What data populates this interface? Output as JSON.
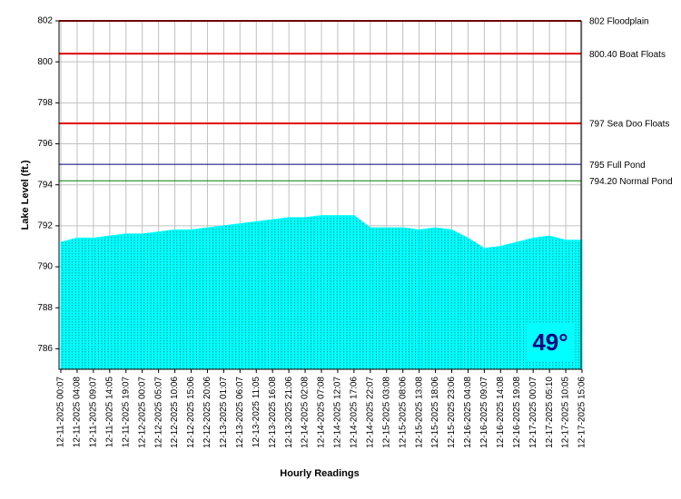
{
  "chart_data": {
    "type": "area",
    "y_label": "Lake Level (ft.)",
    "x_label": "Hourly Readings",
    "annotation": "49°",
    "categories": [
      "12-11-2025 00:07",
      "12-11-2025 04:08",
      "12-11-2025 09:07",
      "12-11-2025 14:05",
      "12-11-2025 19:07",
      "12-12-2025 00:07",
      "12-12-2025 05:07",
      "12-12-2025 10:06",
      "12-12-2025 15:06",
      "12-12-2025 20:06",
      "12-13-2025 01:07",
      "12-13-2025 06:07",
      "12-13-2025 11:05",
      "12-13-2025 16:08",
      "12-13-2025 21:06",
      "12-14-2025 02:08",
      "12-14-2025 07:08",
      "12-14-2025 12:07",
      "12-14-2025 17:06",
      "12-14-2025 22:07",
      "12-15-2025 03:08",
      "12-15-2025 08:06",
      "12-15-2025 13:08",
      "12-15-2025 18:06",
      "12-15-2025 23:06",
      "12-16-2025 04:08",
      "12-16-2025 09:07",
      "12-16-2025 14:08",
      "12-16-2025 19:08",
      "12-17-2025 00:07",
      "12-17-2025 05:10",
      "12-17-2025 10:05",
      "12-17-2025 15:06"
    ],
    "values": [
      791.2,
      791.4,
      791.4,
      791.5,
      791.6,
      791.6,
      791.7,
      791.8,
      791.8,
      791.9,
      792.0,
      792.1,
      792.2,
      792.3,
      792.4,
      792.4,
      792.5,
      792.5,
      792.5,
      791.9,
      791.9,
      791.9,
      791.8,
      791.9,
      791.8,
      791.4,
      790.9,
      791.0,
      791.2,
      791.4,
      791.5,
      791.3,
      791.3
    ],
    "color": "#00ffff",
    "ylim": [
      785,
      802
    ],
    "yticks": [
      786,
      788,
      790,
      792,
      794,
      796,
      798,
      800,
      802
    ],
    "grid": true,
    "reference_lines": [
      {
        "value": 802,
        "label": "802 Floodplain",
        "color": "#e00000"
      },
      {
        "value": 800.4,
        "label": "800.40 Boat Floats",
        "color": "#e00000"
      },
      {
        "value": 797,
        "label": "797 Sea Doo Floats",
        "color": "#e00000"
      },
      {
        "value": 795,
        "label": "795 Full Pond",
        "color": "#000080"
      },
      {
        "value": 794.2,
        "label": "794.20 Normal Pond",
        "color": "#008000"
      }
    ]
  }
}
